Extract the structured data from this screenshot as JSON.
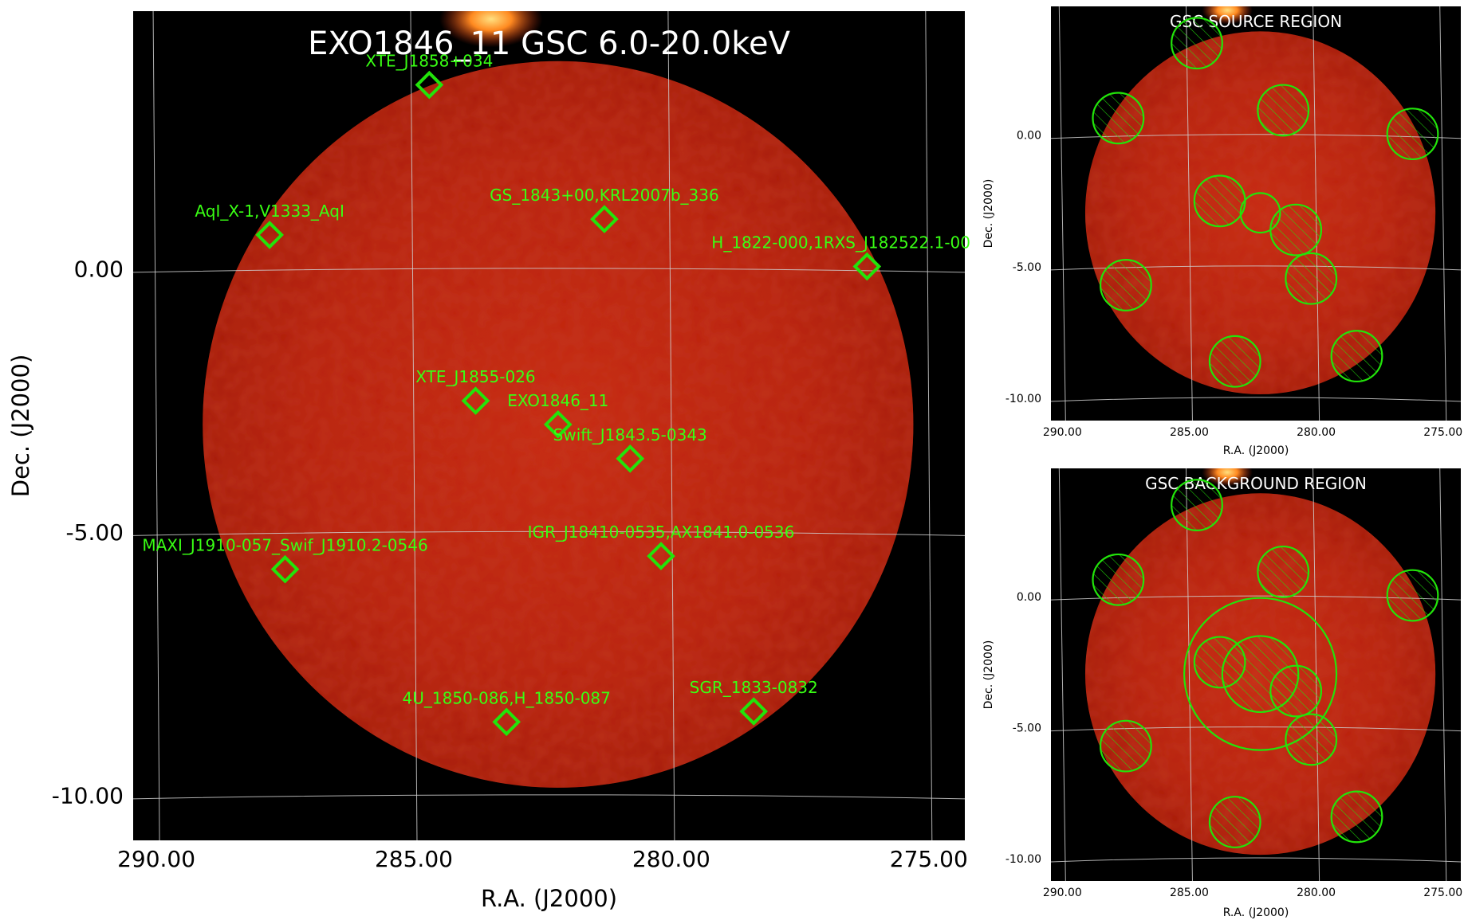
{
  "chart_data": [
    {
      "type": "scatter",
      "title": "EXO1846_11 GSC 6.0-20.0keV",
      "xlabel": "R.A. (J2000)",
      "ylabel": "Dec. (J2000)",
      "x_ticks": [
        "290.00",
        "285.00",
        "280.00",
        "275.00"
      ],
      "y_ticks": [
        "0.00",
        "-5.00",
        "-10.00"
      ],
      "grid": true,
      "colors": {
        "marker": "#22e40a",
        "label": "#39ff14",
        "background": "#000000",
        "map": "#c0230d"
      },
      "sources": [
        {
          "name": "XTE_J1858+034",
          "ra": 284.7,
          "dec": 3.5
        },
        {
          "name": "AqI_X-1,V1333_AqI",
          "ra": 287.8,
          "dec": 0.65
        },
        {
          "name": "GS_1843+00,KRL2007b_336",
          "ra": 281.3,
          "dec": 0.95
        },
        {
          "name": "H_1822-000,1RXS_J182522.1-00",
          "ra": 276.2,
          "dec": 0.05
        },
        {
          "name": "XTE_J1855-026",
          "ra": 283.8,
          "dec": -2.5
        },
        {
          "name": "EXO1846_11",
          "ra": 282.2,
          "dec": -2.95
        },
        {
          "name": "Swift_J1843.5-0343",
          "ra": 280.8,
          "dec": -3.6
        },
        {
          "name": "IGR_J18410-0535,AX1841.0-0536",
          "ra": 280.2,
          "dec": -5.45
        },
        {
          "name": "MAXI_J1910-057_Swif_J1910.2-0546",
          "ra": 287.5,
          "dec": -5.7
        },
        {
          "name": "4U_1850-086,H_1850-087",
          "ra": 283.2,
          "dec": -8.6
        },
        {
          "name": "SGR_1833-0832",
          "ra": 278.4,
          "dec": -8.4
        }
      ]
    },
    {
      "type": "scatter",
      "title": "GSC SOURCE REGION",
      "xlabel": "R.A. (J2000)",
      "ylabel": "Dec. (J2000)",
      "x_ticks": [
        "290.00",
        "285.00",
        "280.00",
        "275.00"
      ],
      "y_ticks": [
        "0.00",
        "-5.00",
        "-10.00"
      ],
      "grid": true,
      "source_region": {
        "ra": 282.2,
        "dec": -2.95,
        "radius_deg": 1.0
      },
      "excluded_regions": [
        {
          "ra": 284.7,
          "dec": 3.5,
          "radius_deg": 1.0
        },
        {
          "ra": 287.8,
          "dec": 0.65,
          "radius_deg": 1.0
        },
        {
          "ra": 281.3,
          "dec": 0.95,
          "radius_deg": 1.0
        },
        {
          "ra": 276.2,
          "dec": 0.05,
          "radius_deg": 1.0
        },
        {
          "ra": 283.8,
          "dec": -2.5,
          "radius_deg": 1.0
        },
        {
          "ra": 280.8,
          "dec": -3.6,
          "radius_deg": 1.0
        },
        {
          "ra": 280.2,
          "dec": -5.45,
          "radius_deg": 1.0
        },
        {
          "ra": 287.5,
          "dec": -5.7,
          "radius_deg": 1.0
        },
        {
          "ra": 283.2,
          "dec": -8.6,
          "radius_deg": 1.0
        },
        {
          "ra": 278.4,
          "dec": -8.4,
          "radius_deg": 1.0
        }
      ]
    },
    {
      "type": "scatter",
      "title": "GSC BACKGROUND REGION",
      "xlabel": "R.A. (J2000)",
      "ylabel": "Dec. (J2000)",
      "x_ticks": [
        "290.00",
        "285.00",
        "280.00",
        "275.00"
      ],
      "y_ticks": [
        "0.00",
        "-5.00",
        "-10.00"
      ],
      "grid": true,
      "background_annulus": {
        "ra": 282.2,
        "dec": -2.95,
        "inner_radius_deg": 1.5,
        "outer_radius_deg": 3.0
      },
      "excluded_regions": [
        {
          "ra": 284.7,
          "dec": 3.5,
          "radius_deg": 1.0
        },
        {
          "ra": 287.8,
          "dec": 0.65,
          "radius_deg": 1.0
        },
        {
          "ra": 281.3,
          "dec": 0.95,
          "radius_deg": 1.0
        },
        {
          "ra": 276.2,
          "dec": 0.05,
          "radius_deg": 1.0
        },
        {
          "ra": 283.8,
          "dec": -2.5,
          "radius_deg": 1.0
        },
        {
          "ra": 280.8,
          "dec": -3.6,
          "radius_deg": 1.0
        },
        {
          "ra": 280.2,
          "dec": -5.45,
          "radius_deg": 1.0
        },
        {
          "ra": 287.5,
          "dec": -5.7,
          "radius_deg": 1.0
        },
        {
          "ra": 283.2,
          "dec": -8.6,
          "radius_deg": 1.0
        },
        {
          "ra": 278.4,
          "dec": -8.4,
          "radius_deg": 1.0
        }
      ]
    }
  ]
}
